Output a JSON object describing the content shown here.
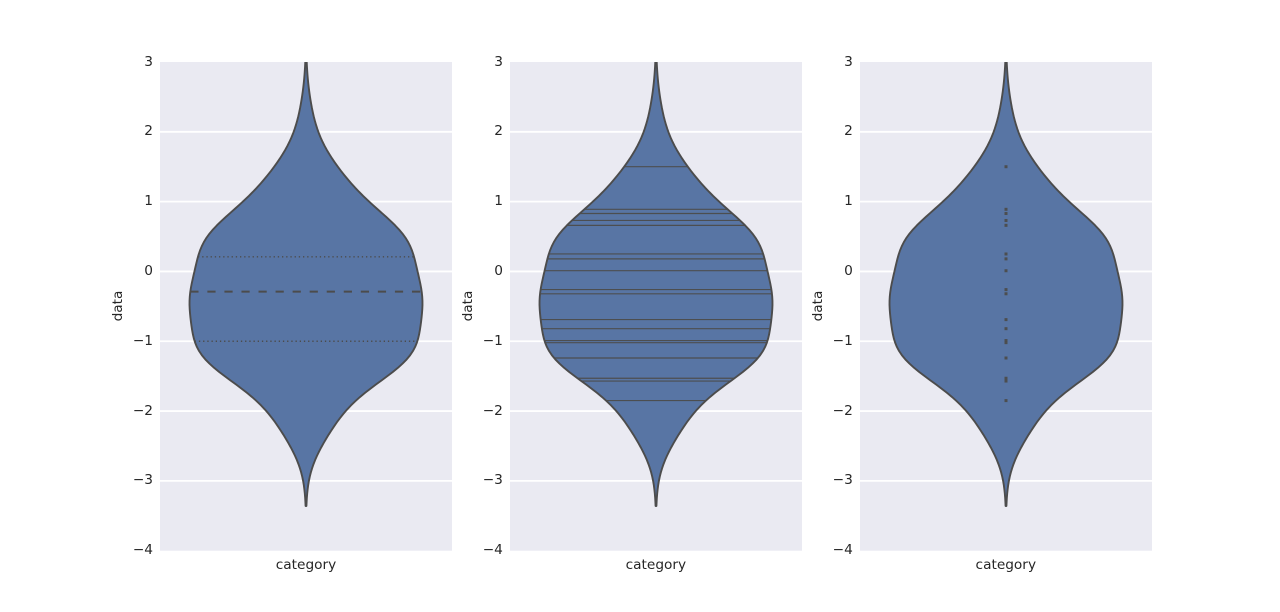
{
  "figure": {
    "background": "#ffffff"
  },
  "chart_data": {
    "type": "violin",
    "title": "",
    "xlabel": "category",
    "ylabel": "data",
    "ylim": [
      -4,
      3
    ],
    "yticks": [
      3,
      2,
      1,
      0,
      -1,
      -2,
      -3,
      -4
    ],
    "ytick_labels": [
      "3",
      "2",
      "1",
      "0",
      "−1",
      "−2",
      "−3",
      "−4"
    ],
    "grid": {
      "horizontal": true,
      "color": "#ffffff"
    },
    "legend": null,
    "violin_width": 0.8,
    "observations": [
      1.5,
      0.89,
      0.83,
      0.73,
      0.66,
      0.25,
      0.18,
      0.01,
      -0.26,
      -0.32,
      -0.69,
      -0.82,
      -0.99,
      -1.02,
      -1.24,
      -1.53,
      -1.57,
      -1.85
    ],
    "quartiles": {
      "q1": -1.0,
      "median": -0.29,
      "q3": 0.21
    },
    "density_profile": [
      [
        -3.36,
        0.0014
      ],
      [
        -3.3,
        0.0021
      ],
      [
        -3.24,
        0.0029
      ],
      [
        -3.18,
        0.0041
      ],
      [
        -3.12,
        0.0056
      ],
      [
        -3.06,
        0.0075
      ],
      [
        -3.0,
        0.0099
      ],
      [
        -2.94,
        0.0129
      ],
      [
        -2.88,
        0.0165
      ],
      [
        -2.82,
        0.0208
      ],
      [
        -2.76,
        0.0258
      ],
      [
        -2.7,
        0.0314
      ],
      [
        -2.64,
        0.0377
      ],
      [
        -2.58,
        0.0447
      ],
      [
        -2.52,
        0.0522
      ],
      [
        -2.46,
        0.0601
      ],
      [
        -2.4,
        0.0685
      ],
      [
        -2.34,
        0.0772
      ],
      [
        -2.28,
        0.0864
      ],
      [
        -2.22,
        0.0959
      ],
      [
        -2.16,
        0.1058
      ],
      [
        -2.1,
        0.1165
      ],
      [
        -2.04,
        0.1278
      ],
      [
        -1.98,
        0.1402
      ],
      [
        -1.92,
        0.1537
      ],
      [
        -1.86,
        0.1684
      ],
      [
        -1.8,
        0.1845
      ],
      [
        -1.74,
        0.2018
      ],
      [
        -1.68,
        0.2203
      ],
      [
        -1.62,
        0.2394
      ],
      [
        -1.56,
        0.259
      ],
      [
        -1.5,
        0.2784
      ],
      [
        -1.44,
        0.2972
      ],
      [
        -1.38,
        0.3148
      ],
      [
        -1.32,
        0.3307
      ],
      [
        -1.26,
        0.3447
      ],
      [
        -1.2,
        0.3565
      ],
      [
        -1.14,
        0.3662
      ],
      [
        -1.08,
        0.3738
      ],
      [
        -1.02,
        0.3797
      ],
      [
        -0.96,
        0.3841
      ],
      [
        -0.9,
        0.3874
      ],
      [
        -0.84,
        0.39
      ],
      [
        -0.78,
        0.3922
      ],
      [
        -0.72,
        0.3941
      ],
      [
        -0.66,
        0.3958
      ],
      [
        -0.6,
        0.3972
      ],
      [
        -0.54,
        0.3983
      ],
      [
        -0.48,
        0.3989
      ],
      [
        -0.42,
        0.3988
      ],
      [
        -0.36,
        0.398
      ],
      [
        -0.3,
        0.3965
      ],
      [
        -0.24,
        0.3944
      ],
      [
        -0.18,
        0.3917
      ],
      [
        -0.12,
        0.3886
      ],
      [
        -0.06,
        0.3854
      ],
      [
        0.0,
        0.3821
      ],
      [
        0.06,
        0.3788
      ],
      [
        0.12,
        0.3754
      ],
      [
        0.18,
        0.3719
      ],
      [
        0.24,
        0.3678
      ],
      [
        0.3,
        0.363
      ],
      [
        0.36,
        0.3571
      ],
      [
        0.42,
        0.3499
      ],
      [
        0.48,
        0.3411
      ],
      [
        0.54,
        0.3307
      ],
      [
        0.6,
        0.3186
      ],
      [
        0.66,
        0.3051
      ],
      [
        0.72,
        0.2904
      ],
      [
        0.78,
        0.2749
      ],
      [
        0.84,
        0.2588
      ],
      [
        0.9,
        0.2427
      ],
      [
        0.96,
        0.2267
      ],
      [
        1.02,
        0.2111
      ],
      [
        1.08,
        0.1961
      ],
      [
        1.14,
        0.1818
      ],
      [
        1.2,
        0.1682
      ],
      [
        1.26,
        0.1552
      ],
      [
        1.32,
        0.1429
      ],
      [
        1.38,
        0.1311
      ],
      [
        1.44,
        0.1198
      ],
      [
        1.5,
        0.109
      ],
      [
        1.56,
        0.0988
      ],
      [
        1.62,
        0.089
      ],
      [
        1.68,
        0.0799
      ],
      [
        1.74,
        0.0713
      ],
      [
        1.8,
        0.0635
      ],
      [
        1.86,
        0.0563
      ],
      [
        1.92,
        0.0498
      ],
      [
        1.98,
        0.044
      ],
      [
        2.04,
        0.0389
      ],
      [
        2.1,
        0.0343
      ],
      [
        2.16,
        0.0302
      ],
      [
        2.22,
        0.0265
      ],
      [
        2.28,
        0.0233
      ],
      [
        2.34,
        0.0203
      ],
      [
        2.4,
        0.0177
      ],
      [
        2.46,
        0.0152
      ],
      [
        2.52,
        0.013
      ],
      [
        2.58,
        0.011
      ],
      [
        2.64,
        0.0092
      ],
      [
        2.7,
        0.0076
      ],
      [
        2.76,
        0.0062
      ],
      [
        2.82,
        0.005
      ],
      [
        2.88,
        0.004
      ],
      [
        2.94,
        0.0031
      ],
      [
        3.0,
        0.0024
      ]
    ],
    "subplots": [
      {
        "inner": "quartile",
        "xlabel": "category",
        "ylabel": "data"
      },
      {
        "inner": "stick",
        "xlabel": "category",
        "ylabel": "data"
      },
      {
        "inner": "point",
        "xlabel": "category",
        "ylabel": "data"
      }
    ],
    "colors": {
      "violin_fill": "#5875a4",
      "violin_edge": "#4c4c4c",
      "inner_marks": "#4c4c4c",
      "axes_background": "#eaeaf2",
      "grid": "#ffffff",
      "text": "#262626"
    }
  }
}
